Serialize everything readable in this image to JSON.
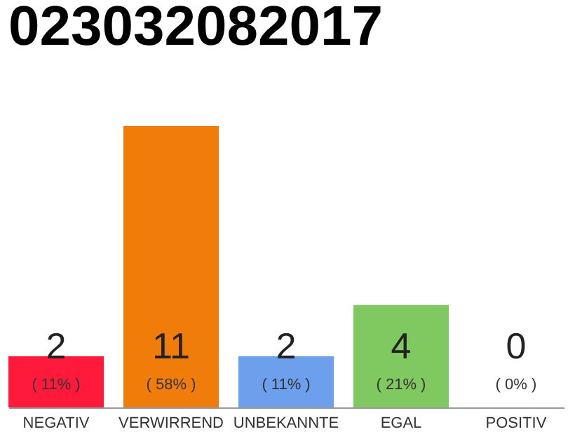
{
  "chart_data": {
    "type": "bar",
    "title": "023032082017",
    "categories": [
      "NEGATIV",
      "VERWIRREND",
      "UNBEKANNTE",
      "EGAL",
      "POSITIV"
    ],
    "values": [
      2,
      11,
      2,
      4,
      0
    ],
    "colors": [
      "#ff1a3c",
      "#f07d0a",
      "#6ca0ec",
      "#80c860",
      "#cccccc"
    ],
    "data_labels": true,
    "annotations": [
      "( 11% )",
      "( 58% )",
      "( 11% )",
      "( 21% )",
      "( 0% )"
    ]
  }
}
